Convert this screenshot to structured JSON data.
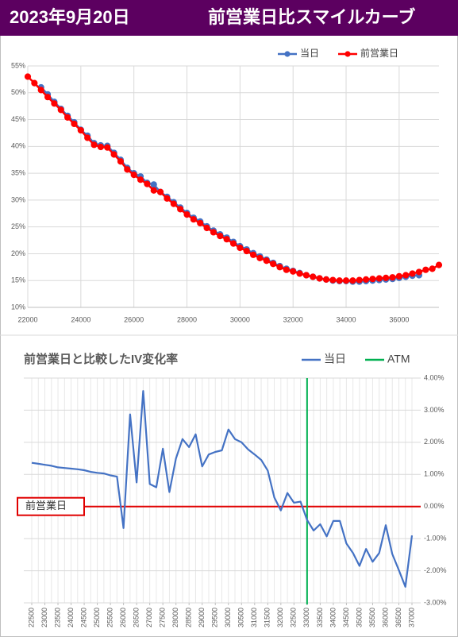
{
  "header": {
    "date": "2023年9月20日",
    "title": "前営業日比スマイルカーブ"
  },
  "chart_data": [
    {
      "type": "line",
      "markers": true,
      "grid": true,
      "legend": "top-right",
      "x": [
        22000,
        22250,
        22500,
        22750,
        23000,
        23250,
        23500,
        23750,
        24000,
        24250,
        24500,
        24750,
        25000,
        25250,
        25500,
        25750,
        26000,
        26250,
        26500,
        26750,
        27000,
        27250,
        27500,
        27750,
        28000,
        28250,
        28500,
        28750,
        29000,
        29250,
        29500,
        29750,
        30000,
        30250,
        30500,
        30750,
        31000,
        31250,
        31500,
        31750,
        32000,
        32250,
        32500,
        32750,
        33000,
        33250,
        33500,
        33750,
        34000,
        34250,
        34500,
        34750,
        35000,
        35250,
        35500,
        35750,
        36000,
        36250,
        36500,
        36750,
        37000,
        37250,
        37500
      ],
      "series": [
        {
          "name": "当日",
          "color": "#4472c4",
          "values": [
            null,
            null,
            51.0,
            49.7,
            48.3,
            47.0,
            45.7,
            44.5,
            43.1,
            42.0,
            40.6,
            40.2,
            40.1,
            38.8,
            37.5,
            36.0,
            35.0,
            34.4,
            33.2,
            32.9,
            31.5,
            30.6,
            29.6,
            28.6,
            27.6,
            26.7,
            26.0,
            25.1,
            24.3,
            23.6,
            23.0,
            22.2,
            21.4,
            20.8,
            20.1,
            19.5,
            18.9,
            18.3,
            17.7,
            17.2,
            16.8,
            16.4,
            16.0,
            15.7,
            15.4,
            15.2,
            15.0,
            14.9,
            14.9,
            14.8,
            14.8,
            14.9,
            15.0,
            15.1,
            15.2,
            15.3,
            15.5,
            15.7,
            15.9,
            16.0,
            null,
            null,
            null
          ]
        },
        {
          "name": "前営業日",
          "color": "#ff0000",
          "values": [
            53,
            51.8,
            50.5,
            49.2,
            48,
            46.8,
            45.4,
            44.2,
            43,
            41.6,
            40.3,
            39.9,
            39.8,
            38.5,
            37.2,
            35.7,
            34.7,
            33.8,
            33,
            31.8,
            31.5,
            30.3,
            29.3,
            28.3,
            27.3,
            26.4,
            25.7,
            24.8,
            24,
            23.3,
            22.7,
            21.9,
            21.1,
            20.5,
            19.8,
            19.2,
            18.7,
            18.1,
            17.5,
            17,
            16.7,
            16.3,
            16,
            15.7,
            15.4,
            15.2,
            15.1,
            15,
            15,
            15,
            15.1,
            15.2,
            15.3,
            15.4,
            15.5,
            15.6,
            15.8,
            16,
            16.3,
            16.6,
            17,
            17.2,
            17.9
          ]
        }
      ],
      "xlim": [
        22000,
        37500
      ],
      "xticks": [
        22000,
        24000,
        26000,
        28000,
        30000,
        32000,
        34000,
        36000
      ],
      "ylim": [
        10,
        55
      ],
      "yticks": [
        {
          "value": 10,
          "label": "10%"
        },
        {
          "value": 15,
          "label": "15%"
        },
        {
          "value": 20,
          "label": "20%"
        },
        {
          "value": 25,
          "label": "25%"
        },
        {
          "value": 30,
          "label": "30%"
        },
        {
          "value": 35,
          "label": "35%"
        },
        {
          "value": 40,
          "label": "40%"
        },
        {
          "value": 45,
          "label": "45%"
        },
        {
          "value": 50,
          "label": "50%"
        },
        {
          "value": 55,
          "label": "55%"
        }
      ]
    },
    {
      "type": "line",
      "markers": false,
      "grid": true,
      "legend": "top-right",
      "title": "前営業日と比較したIV変化率",
      "x": [
        22500,
        22750,
        23000,
        23250,
        23500,
        23750,
        24000,
        24250,
        24500,
        24750,
        25000,
        25250,
        25500,
        25750,
        26000,
        26250,
        26500,
        26750,
        27000,
        27250,
        27500,
        27750,
        28000,
        28250,
        28500,
        28750,
        29000,
        29250,
        29500,
        29750,
        30000,
        30250,
        30500,
        30750,
        31000,
        31250,
        31500,
        31750,
        32000,
        32250,
        32500,
        32750,
        33000,
        33250,
        33500,
        33750,
        34000,
        34250,
        34500,
        34750,
        35000,
        35250,
        35500,
        35750,
        36000,
        36250,
        36500,
        36750,
        37000
      ],
      "series": [
        {
          "name": "当日",
          "color": "#4472c4",
          "values": [
            1.36,
            1.33,
            1.3,
            1.27,
            1.22,
            1.2,
            1.18,
            1.16,
            1.13,
            1.08,
            1.05,
            1.03,
            0.97,
            0.93,
            -0.67,
            2.87,
            0.75,
            3.6,
            0.7,
            0.6,
            1.8,
            0.45,
            1.5,
            2.1,
            1.85,
            2.25,
            1.25,
            1.62,
            1.7,
            1.75,
            2.4,
            2.1,
            2.0,
            1.78,
            1.62,
            1.45,
            1.12,
            0.28,
            -0.12,
            0.42,
            0.12,
            0.15,
            -0.42,
            -0.75,
            -0.55,
            -0.93,
            -0.45,
            -0.45,
            -1.15,
            -1.45,
            -1.85,
            -1.32,
            -1.72,
            -1.45,
            -0.58,
            -1.48,
            -1.98,
            -2.5,
            -0.9
          ]
        }
      ],
      "atm_line": {
        "name": "ATM",
        "x": 33000,
        "color": "#00b050"
      },
      "reference_line": {
        "label": "前営業日",
        "value": 0,
        "color": "#e00000"
      },
      "xlim": [
        22500,
        37000
      ],
      "xticks": [
        22500,
        23000,
        23500,
        24000,
        24500,
        25000,
        25500,
        26000,
        26500,
        27000,
        27500,
        28000,
        28500,
        29000,
        29500,
        30000,
        30500,
        31000,
        31500,
        32000,
        32500,
        33000,
        33500,
        34000,
        34500,
        35000,
        35500,
        36000,
        36500,
        37000
      ],
      "ylim": [
        -3,
        4
      ],
      "yticks": [
        {
          "value": -3,
          "label": "-3.00%"
        },
        {
          "value": -2,
          "label": "-2.00%"
        },
        {
          "value": -1,
          "label": "-1.00%"
        },
        {
          "value": 0,
          "label": "0.00%"
        },
        {
          "value": 1,
          "label": "1.00%"
        },
        {
          "value": 2,
          "label": "2.00%"
        },
        {
          "value": 3,
          "label": "3.00%"
        },
        {
          "value": 4,
          "label": "4.00%"
        }
      ]
    }
  ]
}
